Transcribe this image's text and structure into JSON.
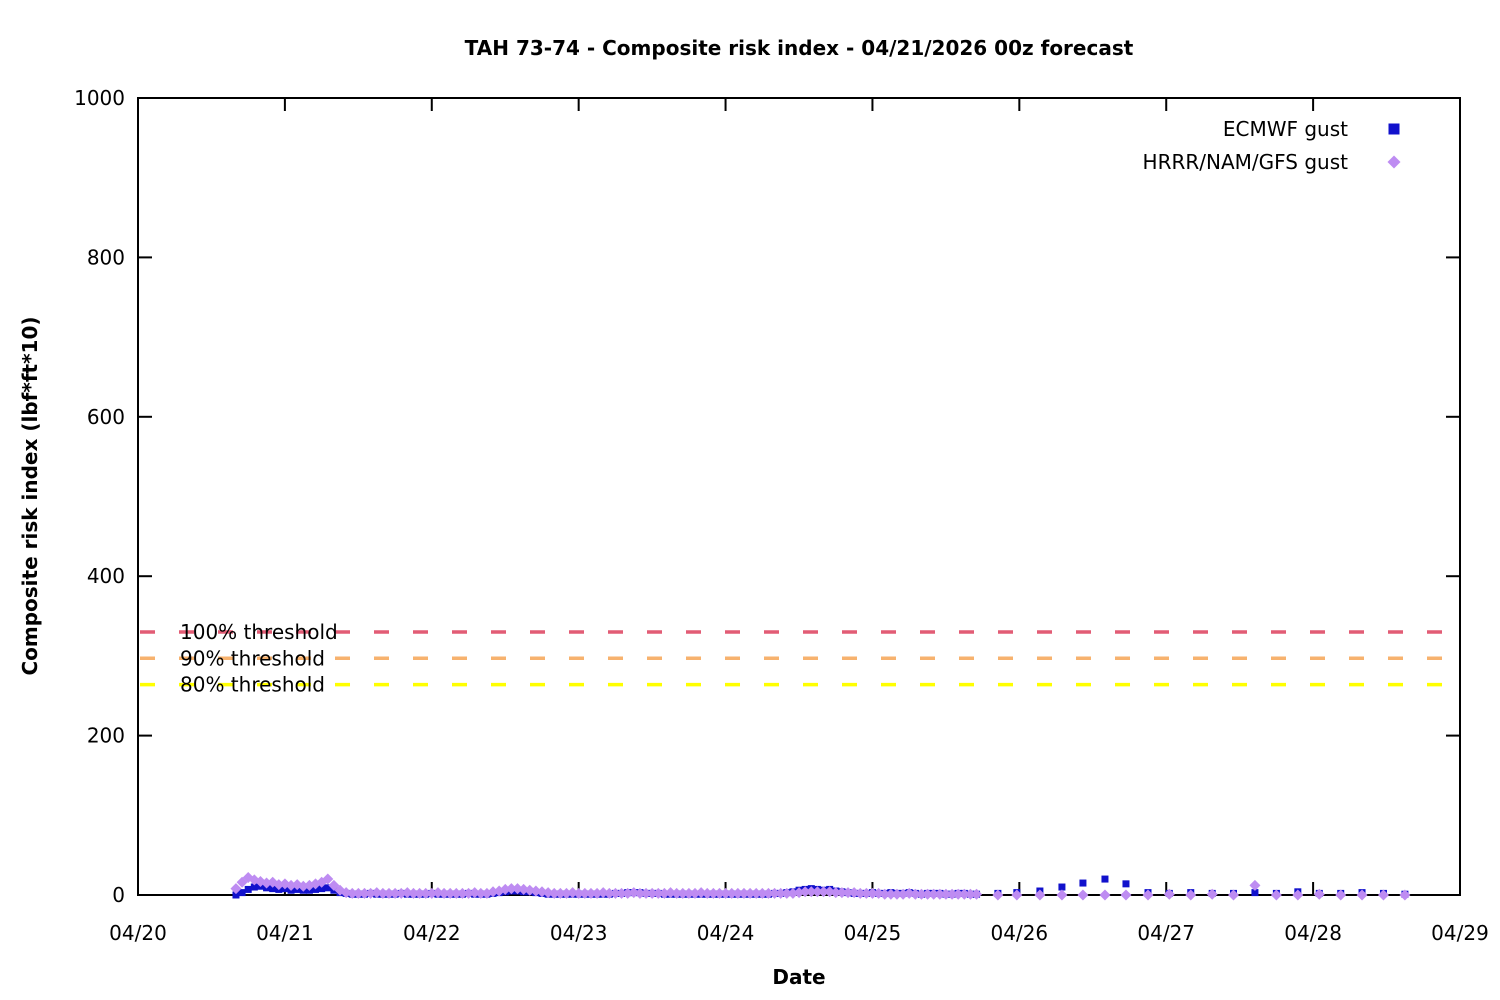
{
  "chart_data": {
    "type": "scatter",
    "title": "TAH 73-74 - Composite risk index - 04/21/2026 00z forecast",
    "xlabel": "Date",
    "ylabel": "Composite risk index (lbf*ft*10)",
    "x_ticks": [
      "04/20",
      "04/21",
      "04/22",
      "04/23",
      "04/24",
      "04/25",
      "04/26",
      "04/27",
      "04/28",
      "04/29"
    ],
    "y_ticks": [
      0,
      200,
      400,
      600,
      800,
      1000
    ],
    "ylim": [
      0,
      1000
    ],
    "xlim_days": [
      0,
      9
    ],
    "grid": false,
    "legend_position": "top-right-inside",
    "thresholds": [
      {
        "label": "100% threshold",
        "value": 330,
        "color": "#E25C75"
      },
      {
        "label": "90% threshold",
        "value": 297,
        "color": "#F7B26E"
      },
      {
        "label": "80% threshold",
        "value": 264,
        "color": "#FFFF00"
      }
    ],
    "series": [
      {
        "name": "ECMWF gust",
        "marker": "square",
        "color": "#1111CC",
        "dense": {
          "x0": 0.667,
          "dx": 0.041667,
          "y": [
            0,
            3,
            7,
            10,
            11,
            9,
            8,
            7,
            8,
            6,
            7,
            6,
            6,
            7,
            8,
            9,
            6,
            3,
            2,
            1,
            1,
            1,
            2,
            1,
            1,
            1,
            1,
            2,
            1,
            1,
            1,
            1,
            2,
            1,
            1,
            1,
            1,
            1,
            2,
            1,
            1,
            1,
            2,
            3,
            4,
            5,
            5,
            4,
            4,
            3,
            2,
            1,
            1,
            1,
            1,
            1,
            1,
            1,
            1,
            1,
            1,
            1,
            2,
            2,
            3,
            3,
            3,
            2,
            2,
            2,
            1,
            1,
            1,
            1,
            1,
            1,
            1,
            1,
            1,
            1,
            1,
            1,
            1,
            1,
            1,
            1,
            1,
            1,
            2,
            2,
            3,
            4,
            6,
            7,
            8,
            7,
            6,
            7,
            5,
            4,
            3,
            2,
            2,
            2,
            3,
            2,
            2,
            3,
            2,
            2,
            3,
            2,
            1,
            2,
            2,
            2,
            1,
            1,
            2,
            2,
            1,
            1
          ]
        },
        "sparse": {
          "x": [
            5.854,
            5.983,
            6.14,
            6.29,
            6.433,
            6.583,
            6.726,
            6.876,
            7.021,
            7.167,
            7.313,
            7.458,
            7.604,
            7.75,
            7.896,
            8.042,
            8.188,
            8.333,
            8.479,
            8.625
          ],
          "y": [
            2,
            3,
            5,
            10,
            15,
            20,
            14,
            3,
            2,
            3,
            2,
            2,
            3,
            2,
            4,
            2,
            2,
            3,
            2,
            1
          ]
        }
      },
      {
        "name": "HRRR/NAM/GFS gust",
        "marker": "diamond",
        "color": "#BE8CF2",
        "dense": {
          "x0": 0.667,
          "dx": 0.041667,
          "y": [
            8,
            16,
            22,
            19,
            17,
            15,
            16,
            13,
            14,
            12,
            13,
            11,
            12,
            14,
            16,
            20,
            12,
            6,
            3,
            2,
            2,
            2,
            2,
            3,
            2,
            2,
            2,
            2,
            3,
            2,
            2,
            2,
            2,
            3,
            2,
            2,
            2,
            2,
            2,
            3,
            2,
            2,
            4,
            5,
            7,
            8,
            8,
            7,
            6,
            5,
            4,
            3,
            2,
            2,
            2,
            3,
            2,
            2,
            2,
            2,
            3,
            2,
            2,
            2,
            2,
            3,
            2,
            2,
            2,
            2,
            2,
            3,
            2,
            2,
            2,
            2,
            3,
            2,
            2,
            2,
            2,
            2,
            2,
            2,
            2,
            2,
            2,
            2,
            2,
            2,
            2,
            2,
            3,
            4,
            4,
            4,
            4,
            4,
            3,
            3,
            3,
            3,
            2,
            2,
            2,
            2,
            1,
            1,
            1,
            1,
            2,
            1,
            1,
            1,
            1,
            1,
            1,
            1,
            1,
            1,
            1,
            1
          ]
        },
        "sparse": {
          "x": [
            5.854,
            5.983,
            6.14,
            6.29,
            6.433,
            6.583,
            6.726,
            6.876,
            7.021,
            7.167,
            7.313,
            7.458,
            7.604,
            7.75,
            7.896,
            8.042,
            8.188,
            8.333,
            8.479,
            8.625
          ],
          "y": [
            0,
            0,
            0,
            0,
            0,
            0,
            0,
            0,
            1,
            0,
            1,
            0,
            12,
            0,
            0,
            1,
            0,
            0,
            0,
            0
          ]
        }
      }
    ]
  }
}
